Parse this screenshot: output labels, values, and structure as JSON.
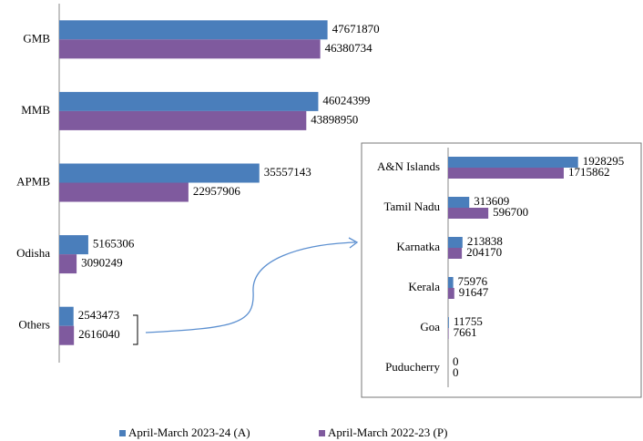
{
  "chart_data": [
    {
      "type": "bar",
      "orientation": "horizontal",
      "categories": [
        "GMB",
        "MMB",
        "APMB",
        "Odisha",
        "Others"
      ],
      "series": [
        {
          "name": "April-March 2023-24 (A)",
          "color": "#4a7ebb",
          "values": [
            47671870,
            46024399,
            35557143,
            5165306,
            2543473
          ]
        },
        {
          "name": "April-March 2022-23 (P)",
          "color": "#7f5a9e",
          "values": [
            46380734,
            43898950,
            22957906,
            3090249,
            2616040
          ]
        }
      ],
      "xlim": [
        0,
        50000000
      ],
      "legend": "bottom"
    },
    {
      "type": "bar",
      "orientation": "horizontal",
      "categories": [
        "A&N Islands",
        "Tamil Nadu",
        "Karnatka",
        "Kerala",
        "Goa",
        "Puducherry"
      ],
      "series": [
        {
          "color": "#4a7ebb",
          "values": [
            1928295,
            313609,
            213838,
            75976,
            11755,
            0
          ]
        },
        {
          "color": "#7f5a9e",
          "values": [
            1715862,
            596700,
            204170,
            91647,
            7661,
            0
          ]
        }
      ],
      "xlim": [
        0,
        2000000
      ]
    }
  ]
}
